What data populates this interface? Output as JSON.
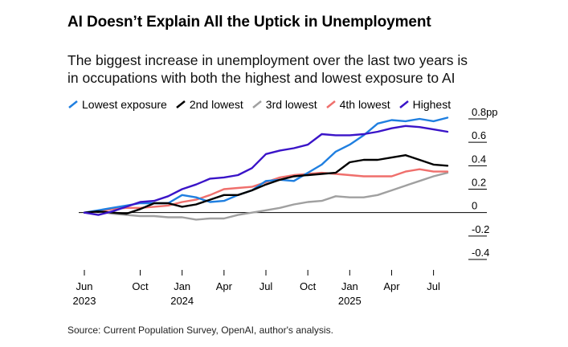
{
  "title": "AI Doesn’t Explain All the Uptick in Unemployment",
  "subtitle_lines": [
    "The biggest increase in unemployment over the last two years is",
    "in occupations with both the highest and lowest exposure to AI"
  ],
  "source": "Source: Current Population Survey, OpenAI, author's analysis.",
  "chart_data": {
    "type": "line",
    "title": "AI Doesn’t Explain All the Uptick in Unemployment",
    "ylabel_unit": "pp",
    "ylim": [
      -0.4,
      0.8
    ],
    "yticks": [
      {
        "value": 0.8,
        "label": "0.8pp"
      },
      {
        "value": 0.6,
        "label": "0.6"
      },
      {
        "value": 0.4,
        "label": "0.4"
      },
      {
        "value": 0.2,
        "label": "0.2"
      },
      {
        "value": 0,
        "label": "0"
      },
      {
        "value": -0.2,
        "label": "-0.2"
      },
      {
        "value": -0.4,
        "label": "-0.4"
      }
    ],
    "x_months": [
      "2023-06",
      "2023-07",
      "2023-08",
      "2023-09",
      "2023-10",
      "2023-11",
      "2023-12",
      "2024-01",
      "2024-02",
      "2024-03",
      "2024-04",
      "2024-05",
      "2024-06",
      "2024-07",
      "2024-08",
      "2024-09",
      "2024-10",
      "2024-11",
      "2024-12",
      "2025-01",
      "2025-02",
      "2025-03",
      "2025-04",
      "2025-05",
      "2025-06",
      "2025-07",
      "2025-08"
    ],
    "xticks": [
      {
        "index": 0,
        "label": "Jun",
        "sub": "2023"
      },
      {
        "index": 4,
        "label": "Oct",
        "sub": ""
      },
      {
        "index": 7,
        "label": "Jan",
        "sub": "2024"
      },
      {
        "index": 10,
        "label": "Apr",
        "sub": ""
      },
      {
        "index": 13,
        "label": "Jul",
        "sub": ""
      },
      {
        "index": 16,
        "label": "Oct",
        "sub": ""
      },
      {
        "index": 19,
        "label": "Jan",
        "sub": "2025"
      },
      {
        "index": 22,
        "label": "Apr",
        "sub": ""
      },
      {
        "index": 25,
        "label": "Jul",
        "sub": ""
      }
    ],
    "series": [
      {
        "name": "Lowest exposure",
        "color": "#1f7fe0",
        "values": [
          0,
          0.02,
          0.04,
          0.06,
          0.08,
          0.08,
          0.08,
          0.15,
          0.13,
          0.09,
          0.1,
          0.15,
          0.19,
          0.27,
          0.28,
          0.27,
          0.34,
          0.41,
          0.52,
          0.58,
          0.66,
          0.76,
          0.79,
          0.78,
          0.8,
          0.78,
          0.81
        ]
      },
      {
        "name": "2nd lowest",
        "color": "#000000",
        "values": [
          0,
          0.01,
          0.0,
          -0.01,
          0.03,
          0.08,
          0.08,
          0.05,
          0.07,
          0.11,
          0.15,
          0.15,
          0.19,
          0.24,
          0.28,
          0.31,
          0.32,
          0.33,
          0.34,
          0.43,
          0.45,
          0.45,
          0.47,
          0.49,
          0.45,
          0.41,
          0.4
        ]
      },
      {
        "name": "3rd lowest",
        "color": "#a0a0a0",
        "values": [
          0,
          0.01,
          -0.01,
          -0.02,
          -0.03,
          -0.03,
          -0.04,
          -0.04,
          -0.06,
          -0.05,
          -0.05,
          -0.02,
          0.0,
          0.02,
          0.04,
          0.07,
          0.09,
          0.1,
          0.14,
          0.13,
          0.13,
          0.15,
          0.19,
          0.23,
          0.27,
          0.31,
          0.34
        ]
      },
      {
        "name": "4th lowest",
        "color": "#ef6f6c",
        "values": [
          0,
          0.01,
          0.03,
          0.04,
          0.04,
          0.05,
          0.06,
          0.09,
          0.11,
          0.15,
          0.2,
          0.21,
          0.22,
          0.26,
          0.3,
          0.32,
          0.33,
          0.34,
          0.33,
          0.32,
          0.31,
          0.31,
          0.31,
          0.35,
          0.37,
          0.35,
          0.35
        ]
      },
      {
        "name": "Highest",
        "color": "#3a14c8",
        "values": [
          0,
          -0.02,
          0.01,
          0.05,
          0.09,
          0.1,
          0.14,
          0.2,
          0.24,
          0.29,
          0.3,
          0.32,
          0.38,
          0.5,
          0.53,
          0.55,
          0.58,
          0.67,
          0.66,
          0.66,
          0.67,
          0.69,
          0.72,
          0.74,
          0.73,
          0.71,
          0.69
        ]
      }
    ]
  }
}
